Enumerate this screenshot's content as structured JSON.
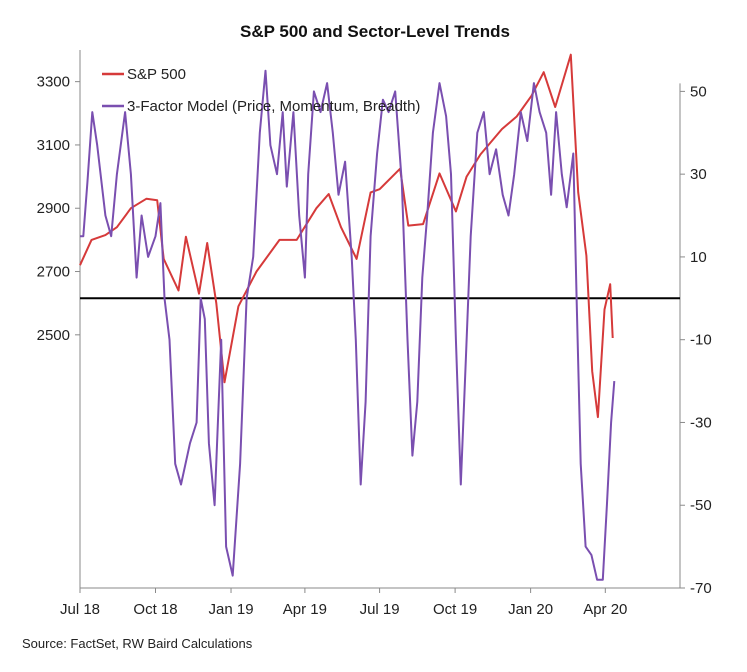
{
  "chart_data": {
    "type": "line",
    "title": "S&P 500 and Sector-Level Trends",
    "source": "Source: FactSet, RW Baird Calculations",
    "x_ticks": [
      "Jul 18",
      "Oct 18",
      "Jan 19",
      "Apr 19",
      "Jul 19",
      "Oct 19",
      "Jan 20",
      "Apr 20"
    ],
    "x_range": [
      "2018-07",
      "2020-07"
    ],
    "left_axis": {
      "ticks": [
        2500,
        2700,
        2900,
        3100,
        3300
      ],
      "range": [
        1700,
        3400
      ]
    },
    "right_axis": {
      "ticks": [
        -70,
        -50,
        -30,
        -10,
        10,
        30,
        50
      ],
      "range": [
        -70,
        60
      ]
    },
    "zero_line": 0,
    "legend_position": "top-left",
    "series": [
      {
        "name": "S&P 500",
        "axis": "left",
        "color": "#d63a3a",
        "points": [
          [
            "2018-07-01",
            2720
          ],
          [
            "2018-07-15",
            2800
          ],
          [
            "2018-08-01",
            2815
          ],
          [
            "2018-08-15",
            2840
          ],
          [
            "2018-09-01",
            2900
          ],
          [
            "2018-09-20",
            2930
          ],
          [
            "2018-10-03",
            2925
          ],
          [
            "2018-10-11",
            2740
          ],
          [
            "2018-10-29",
            2640
          ],
          [
            "2018-11-07",
            2810
          ],
          [
            "2018-11-23",
            2630
          ],
          [
            "2018-12-03",
            2790
          ],
          [
            "2018-12-14",
            2600
          ],
          [
            "2018-12-24",
            2350
          ],
          [
            "2019-01-10",
            2590
          ],
          [
            "2019-02-01",
            2700
          ],
          [
            "2019-03-01",
            2800
          ],
          [
            "2019-03-22",
            2800
          ],
          [
            "2019-04-15",
            2900
          ],
          [
            "2019-04-30",
            2945
          ],
          [
            "2019-05-15",
            2840
          ],
          [
            "2019-06-03",
            2740
          ],
          [
            "2019-06-20",
            2950
          ],
          [
            "2019-07-01",
            2960
          ],
          [
            "2019-07-26",
            3025
          ],
          [
            "2019-08-05",
            2845
          ],
          [
            "2019-08-23",
            2850
          ],
          [
            "2019-09-12",
            3010
          ],
          [
            "2019-10-02",
            2890
          ],
          [
            "2019-10-15",
            3000
          ],
          [
            "2019-11-01",
            3070
          ],
          [
            "2019-11-27",
            3150
          ],
          [
            "2019-12-15",
            3190
          ],
          [
            "2020-01-02",
            3255
          ],
          [
            "2020-01-17",
            3330
          ],
          [
            "2020-01-31",
            3220
          ],
          [
            "2020-02-19",
            3385
          ],
          [
            "2020-02-28",
            2950
          ],
          [
            "2020-03-09",
            2750
          ],
          [
            "2020-03-16",
            2385
          ],
          [
            "2020-03-23",
            2240
          ],
          [
            "2020-03-31",
            2580
          ],
          [
            "2020-04-07",
            2660
          ],
          [
            "2020-04-10",
            2490
          ]
        ]
      },
      {
        "name": "3-Factor Model (Price, Momentum, Breadth)",
        "axis": "right",
        "color": "#7a4fb0",
        "points": [
          [
            "2018-07-01",
            15
          ],
          [
            "2018-07-05",
            15
          ],
          [
            "2018-07-10",
            28
          ],
          [
            "2018-07-16",
            45
          ],
          [
            "2018-07-22",
            37
          ],
          [
            "2018-08-01",
            20
          ],
          [
            "2018-08-08",
            15
          ],
          [
            "2018-08-15",
            30
          ],
          [
            "2018-08-25",
            45
          ],
          [
            "2018-09-01",
            30
          ],
          [
            "2018-09-08",
            5
          ],
          [
            "2018-09-14",
            20
          ],
          [
            "2018-09-22",
            10
          ],
          [
            "2018-10-01",
            15
          ],
          [
            "2018-10-07",
            23
          ],
          [
            "2018-10-12",
            0
          ],
          [
            "2018-10-18",
            -10
          ],
          [
            "2018-10-25",
            -40
          ],
          [
            "2018-11-01",
            -45
          ],
          [
            "2018-11-12",
            -35
          ],
          [
            "2018-11-20",
            -30
          ],
          [
            "2018-11-25",
            0
          ],
          [
            "2018-11-30",
            -5
          ],
          [
            "2018-12-05",
            -35
          ],
          [
            "2018-12-12",
            -50
          ],
          [
            "2018-12-20",
            -10
          ],
          [
            "2018-12-26",
            -60
          ],
          [
            "2019-01-03",
            -67
          ],
          [
            "2019-01-12",
            -40
          ],
          [
            "2019-01-20",
            0
          ],
          [
            "2019-01-28",
            10
          ],
          [
            "2019-02-05",
            40
          ],
          [
            "2019-02-12",
            55
          ],
          [
            "2019-02-18",
            37
          ],
          [
            "2019-02-26",
            30
          ],
          [
            "2019-03-05",
            45
          ],
          [
            "2019-03-10",
            27
          ],
          [
            "2019-03-18",
            45
          ],
          [
            "2019-03-25",
            20
          ],
          [
            "2019-04-01",
            5
          ],
          [
            "2019-04-05",
            30
          ],
          [
            "2019-04-12",
            50
          ],
          [
            "2019-04-20",
            45
          ],
          [
            "2019-04-28",
            52
          ],
          [
            "2019-05-05",
            40
          ],
          [
            "2019-05-12",
            25
          ],
          [
            "2019-05-20",
            33
          ],
          [
            "2019-05-28",
            10
          ],
          [
            "2019-06-02",
            -10
          ],
          [
            "2019-06-08",
            -45
          ],
          [
            "2019-06-14",
            -25
          ],
          [
            "2019-06-20",
            15
          ],
          [
            "2019-06-28",
            35
          ],
          [
            "2019-07-05",
            48
          ],
          [
            "2019-07-12",
            45
          ],
          [
            "2019-07-20",
            50
          ],
          [
            "2019-07-28",
            28
          ],
          [
            "2019-08-04",
            -10
          ],
          [
            "2019-08-10",
            -38
          ],
          [
            "2019-08-16",
            -25
          ],
          [
            "2019-08-22",
            5
          ],
          [
            "2019-08-28",
            20
          ],
          [
            "2019-09-04",
            40
          ],
          [
            "2019-09-12",
            52
          ],
          [
            "2019-09-20",
            44
          ],
          [
            "2019-09-26",
            30
          ],
          [
            "2019-10-02",
            -10
          ],
          [
            "2019-10-08",
            -45
          ],
          [
            "2019-10-14",
            -15
          ],
          [
            "2019-10-20",
            15
          ],
          [
            "2019-10-28",
            40
          ],
          [
            "2019-11-05",
            45
          ],
          [
            "2019-11-12",
            30
          ],
          [
            "2019-11-20",
            36
          ],
          [
            "2019-11-28",
            25
          ],
          [
            "2019-12-05",
            20
          ],
          [
            "2019-12-12",
            30
          ],
          [
            "2019-12-20",
            45
          ],
          [
            "2019-12-28",
            38
          ],
          [
            "2020-01-05",
            52
          ],
          [
            "2020-01-12",
            45
          ],
          [
            "2020-01-20",
            40
          ],
          [
            "2020-01-26",
            25
          ],
          [
            "2020-02-01",
            45
          ],
          [
            "2020-02-08",
            30
          ],
          [
            "2020-02-14",
            22
          ],
          [
            "2020-02-22",
            35
          ],
          [
            "2020-02-26",
            0
          ],
          [
            "2020-03-02",
            -40
          ],
          [
            "2020-03-08",
            -60
          ],
          [
            "2020-03-15",
            -62
          ],
          [
            "2020-03-22",
            -68
          ],
          [
            "2020-03-29",
            -68
          ],
          [
            "2020-04-03",
            -50
          ],
          [
            "2020-04-08",
            -30
          ],
          [
            "2020-04-12",
            -20
          ]
        ]
      }
    ]
  }
}
